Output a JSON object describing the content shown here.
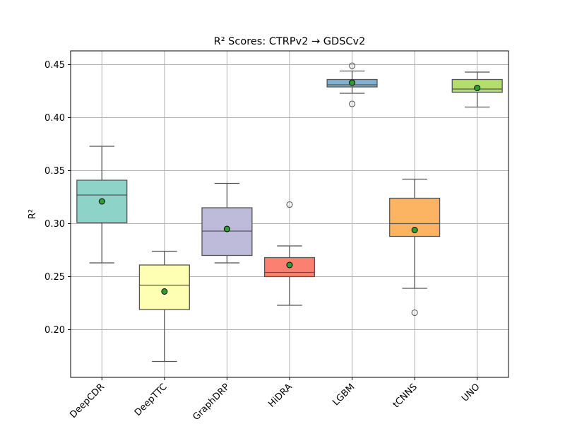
{
  "chart_data": {
    "type": "box",
    "title": "R² Scores: CTRPv2 → GDSCv2",
    "xlabel": "",
    "ylabel": "R²",
    "ylim": [
      0.155,
      0.463
    ],
    "yticks": [
      0.2,
      0.25,
      0.3,
      0.35,
      0.4,
      0.45
    ],
    "ytick_labels": [
      "0.20",
      "0.25",
      "0.30",
      "0.35",
      "0.40",
      "0.45"
    ],
    "grid": true,
    "categories": [
      "DeepCDR",
      "DeepTTC",
      "GraphDRP",
      "HiDRA",
      "LGBM",
      "tCNNS",
      "UNO"
    ],
    "series": [
      {
        "category": "DeepCDR",
        "color": "#8dd3c7",
        "whisker_low": 0.263,
        "q1": 0.301,
        "median": 0.327,
        "q3": 0.341,
        "whisker_high": 0.373,
        "mean": 0.321,
        "outliers": []
      },
      {
        "category": "DeepTTC",
        "color": "#ffffb3",
        "whisker_low": 0.17,
        "q1": 0.219,
        "median": 0.242,
        "q3": 0.261,
        "whisker_high": 0.274,
        "mean": 0.236,
        "outliers": []
      },
      {
        "category": "GraphDRP",
        "color": "#bebada",
        "whisker_low": 0.263,
        "q1": 0.27,
        "median": 0.293,
        "q3": 0.315,
        "whisker_high": 0.338,
        "mean": 0.295,
        "outliers": []
      },
      {
        "category": "HiDRA",
        "color": "#fb8072",
        "whisker_low": 0.223,
        "q1": 0.25,
        "median": 0.254,
        "q3": 0.268,
        "whisker_high": 0.279,
        "mean": 0.261,
        "outliers": [
          0.318
        ]
      },
      {
        "category": "LGBM",
        "color": "#80b1d3",
        "whisker_low": 0.423,
        "q1": 0.429,
        "median": 0.431,
        "q3": 0.436,
        "whisker_high": 0.444,
        "mean": 0.433,
        "outliers": [
          0.449,
          0.413
        ]
      },
      {
        "category": "tCNNS",
        "color": "#fdb462",
        "whisker_low": 0.239,
        "q1": 0.288,
        "median": 0.3,
        "q3": 0.324,
        "whisker_high": 0.342,
        "mean": 0.294,
        "outliers": [
          0.216
        ]
      },
      {
        "category": "UNO",
        "color": "#b3de69",
        "whisker_low": 0.41,
        "q1": 0.424,
        "median": 0.427,
        "q3": 0.436,
        "whisker_high": 0.443,
        "mean": 0.428,
        "outliers": []
      }
    ]
  }
}
